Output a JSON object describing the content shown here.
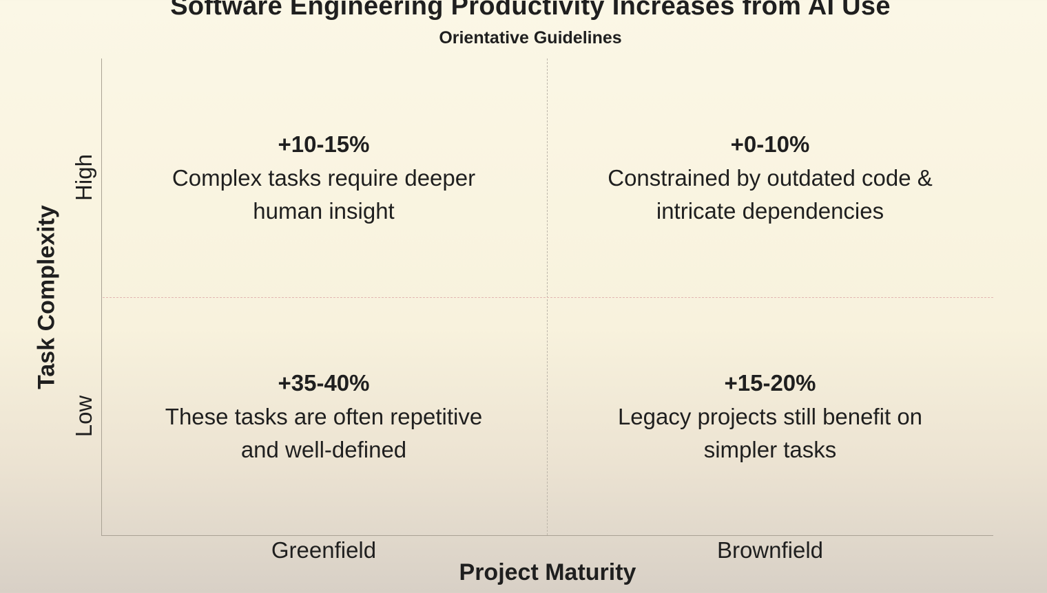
{
  "title": "Software Engineering Productivity Increases from AI Use",
  "subtitle": "Orientative Guidelines",
  "y_axis": {
    "title": "Task Complexity",
    "ticks": [
      "High",
      "Low"
    ]
  },
  "x_axis": {
    "title": "Project Maturity",
    "ticks": [
      "Greenfield",
      "Brownfield"
    ]
  },
  "quadrants": {
    "greenfield_high": {
      "percentage": "+10-15%",
      "line1": "Complex tasks require deeper",
      "line2": "human insight"
    },
    "brownfield_high": {
      "percentage": "+0-10%",
      "line1": "Constrained by outdated code &",
      "line2": "intricate dependencies"
    },
    "greenfield_low": {
      "percentage": "+35-40%",
      "line1": "These tasks are often repetitive",
      "line2": "and well-defined"
    },
    "brownfield_low": {
      "percentage": "+15-20%",
      "line1": "Legacy projects still benefit on",
      "line2": "simpler tasks"
    }
  },
  "colors": {
    "background": "#f8f2dd",
    "text": "#1f1f1f",
    "axis": "#a9a294",
    "vertical_divider": "#bdb6aa",
    "horizontal_divider": "#e2b6b2"
  }
}
